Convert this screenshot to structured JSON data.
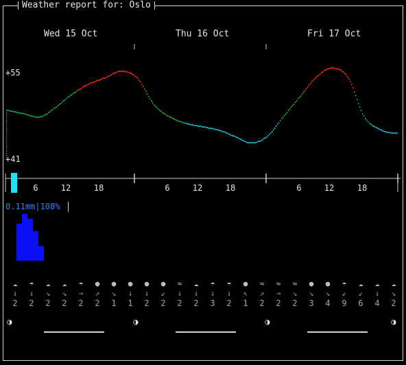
{
  "title": "Weather report for: Oslo",
  "days": [
    "Wed 15 Oct",
    "Thu 16 Oct",
    "Fri 17 Oct"
  ],
  "temperature": {
    "max_label": "+55",
    "min_label": "+41",
    "max": 55,
    "min": 41
  },
  "hour_ticks": [
    "6",
    "12",
    "18",
    "6",
    "12",
    "18",
    "6",
    "12",
    "18"
  ],
  "precipitation": {
    "label": "0.11mm|108%",
    "bars": [
      0.0,
      0.75,
      0.95,
      0.85,
      0.6,
      0.3
    ]
  },
  "chart_data": {
    "type": "line",
    "xlabel": "",
    "ylabel": "",
    "ylim": [
      41,
      55
    ],
    "x_hours": [
      0,
      3,
      6,
      9,
      12,
      15,
      18,
      21,
      24,
      27,
      30,
      33,
      36,
      39,
      42,
      45,
      48,
      51,
      54,
      57,
      60,
      63,
      66,
      69,
      72
    ],
    "series": [
      {
        "values": [
          49,
          48.5,
          48,
          49.5,
          51.5,
          53,
          54,
          55,
          54,
          50,
          48,
          47,
          46.5,
          46,
          45,
          44,
          45,
          48,
          51,
          54,
          55.5,
          54,
          48,
          46,
          45.5
        ]
      }
    ]
  },
  "forecast": {
    "icons": [
      "☁",
      "☂",
      "☁",
      "☁",
      "☂",
      "●",
      "●",
      "●",
      "●",
      "●",
      "≈",
      "☁",
      "☂",
      "☂",
      "●",
      "≈",
      "≈",
      "≈",
      "●",
      "●",
      "☂",
      "☁",
      "☁",
      "☁"
    ],
    "arrows": [
      "↓",
      "↓",
      "↘",
      "↘",
      "→",
      "↗",
      "↘",
      "↓",
      "↓",
      "↙",
      "↓",
      "↓",
      "↓",
      "↓",
      "↖",
      "↗",
      "→",
      "↘",
      "↘",
      "↘",
      "↙",
      "↙",
      "↓",
      "↘"
    ],
    "speeds": [
      "2",
      "2",
      "2",
      "2",
      "2",
      "2",
      "1",
      "1",
      "2",
      "2",
      "2",
      "2",
      "3",
      "2",
      "1",
      "2",
      "2",
      "2",
      "3",
      "4",
      "9",
      "6",
      "4",
      "2"
    ]
  },
  "moon_phases": [
    "◑",
    "◑",
    "◑",
    "◑"
  ]
}
